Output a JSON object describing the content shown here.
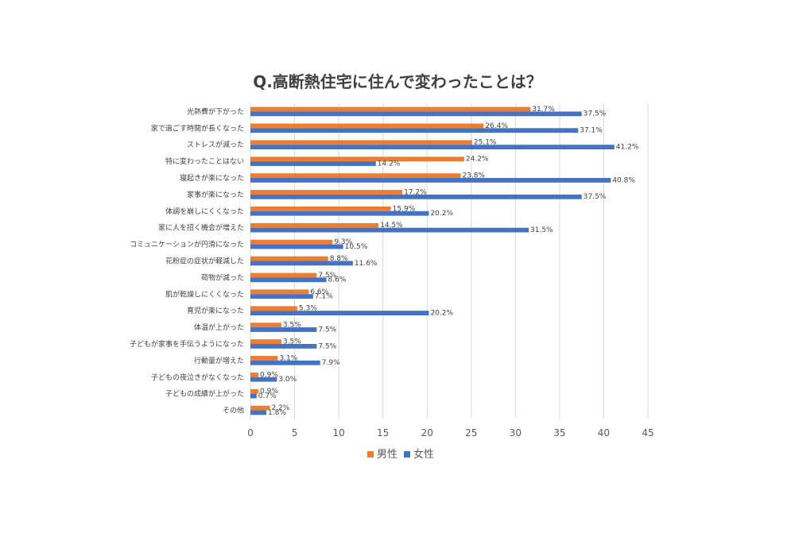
{
  "chart_data": {
    "type": "bar",
    "orientation": "horizontal",
    "title": "Q.高断熱住宅に住んで変わったことは？",
    "categories": [
      "光熱費が下がった",
      "家で過ごす時間が長くなった",
      "ストレスが減った",
      "特に変わったことはない",
      "寝起きが楽になった",
      "家事が楽になった",
      "体調を崩しにくくなった",
      "家に人を招く機会が増えた",
      "コミュニケーションが円滑になった",
      "花粉症の症状が軽減した",
      "荷物が減った",
      "肌が乾燥しにくくなった",
      "育児が楽になった",
      "体温が上がった",
      "子どもが家事を手伝うようになった",
      "行動量が増えた",
      "子どもの夜泣きがなくなった",
      "子どもの成績が上がった",
      "その他"
    ],
    "series": [
      {
        "name": "男性",
        "color": "#ed7d31",
        "values": [
          31.7,
          26.4,
          25.1,
          24.2,
          23.8,
          17.2,
          15.9,
          14.5,
          9.3,
          8.8,
          7.5,
          6.6,
          5.3,
          3.5,
          3.5,
          3.1,
          0.9,
          0.9,
          2.2
        ],
        "labels": [
          "31.7%",
          "26.4%",
          "25.1%",
          "24.2%",
          "23.8%",
          "17.2%",
          "15.9%",
          "14.5%",
          "9.3%",
          "8.8%",
          "7.5%",
          "6.6%",
          "5.3%",
          "3.5%",
          "3.5%",
          "3.1%",
          "0.9%",
          "0.9%",
          "2.2%"
        ]
      },
      {
        "name": "女性",
        "color": "#4472c4",
        "values": [
          37.5,
          37.1,
          41.2,
          14.2,
          40.8,
          37.5,
          20.2,
          31.5,
          10.5,
          11.6,
          8.6,
          7.1,
          20.2,
          7.5,
          7.5,
          7.9,
          3.0,
          0.7,
          1.8
        ],
        "labels": [
          "37.5%",
          "37.1%",
          "41.2%",
          "14.2%",
          "40.8%",
          "37.5%",
          "20.2%",
          "31.5%",
          "10.5%",
          "11.6%",
          "8.6%",
          "7.1%",
          "20.2%",
          "7.5%",
          "7.5%",
          "7.9%",
          "3.0%",
          "0.7%",
          "1.8%"
        ]
      }
    ],
    "xlim": [
      0,
      45
    ],
    "xticks": [
      "0",
      "5",
      "10",
      "15",
      "20",
      "25",
      "30",
      "35",
      "40",
      "45"
    ],
    "grid": true,
    "legend": "bottom"
  }
}
